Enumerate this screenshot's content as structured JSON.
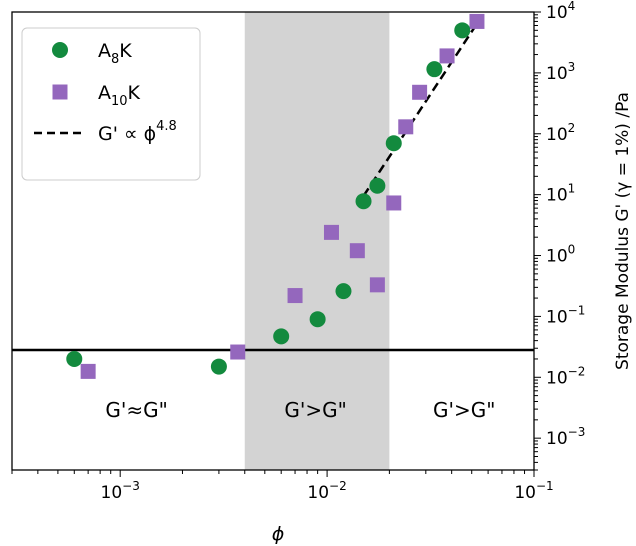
{
  "chart_data": {
    "type": "scatter",
    "xscale": "log",
    "yscale": "log",
    "xlim": [
      0.0003,
      0.1
    ],
    "ylim": [
      0.0003,
      10000
    ],
    "xlabel": "ϕ",
    "ylabel": "Storage Modulus G' (γ = 1%) /Pa",
    "grid": false,
    "legend_position": "top-left",
    "x_ticks": [
      {
        "value": 0.001,
        "base": "10",
        "exp": "−3"
      },
      {
        "value": 0.01,
        "base": "10",
        "exp": "−2"
      },
      {
        "value": 0.1,
        "base": "10",
        "exp": "−1"
      }
    ],
    "y_ticks": [
      {
        "value": 0.001,
        "base": "10",
        "exp": "−3"
      },
      {
        "value": 0.01,
        "base": "10",
        "exp": "−2"
      },
      {
        "value": 0.1,
        "base": "10",
        "exp": "−1"
      },
      {
        "value": 1,
        "base": "10",
        "exp": "0"
      },
      {
        "value": 10,
        "base": "10",
        "exp": "1"
      },
      {
        "value": 100,
        "base": "10",
        "exp": "2"
      },
      {
        "value": 1000,
        "base": "10",
        "exp": "3"
      },
      {
        "value": 10000,
        "base": "10",
        "exp": "4"
      }
    ],
    "shaded_region": {
      "x": [
        0.004,
        0.02
      ],
      "color": "#d3d3d3"
    },
    "horizontal_line": {
      "y": 0.028,
      "color": "#000000"
    },
    "series": [
      {
        "name": "A8K",
        "marker": "circle",
        "color": "#138a3e",
        "x": [
          0.0006,
          0.003,
          0.006,
          0.009,
          0.012,
          0.015,
          0.0175,
          0.021,
          0.033,
          0.045
        ],
        "y": [
          0.02,
          0.015,
          0.047,
          0.09,
          0.26,
          7.8,
          14,
          70,
          1150,
          5000
        ]
      },
      {
        "name": "A10K",
        "marker": "square",
        "color": "#9467bd",
        "x": [
          0.0007,
          0.0037,
          0.007,
          0.0105,
          0.014,
          0.0175,
          0.021,
          0.024,
          0.028,
          0.038,
          0.053
        ],
        "y": [
          0.0125,
          0.026,
          0.22,
          2.4,
          1.2,
          0.33,
          7.3,
          130,
          480,
          1900,
          7000
        ]
      }
    ],
    "fit_line": {
      "name": "G' ∝ ϕ^4.8",
      "style": "dashed",
      "exponent": 4.8,
      "x": [
        0.015,
        0.055
      ],
      "y": [
        9.5,
        7800
      ]
    },
    "legend": {
      "entries": [
        {
          "series": "A8K",
          "base": "A",
          "sub": "8",
          "tail": "K"
        },
        {
          "series": "A10K",
          "base": "A",
          "sub": "10",
          "tail": "K"
        },
        {
          "series": "fit",
          "base": "G' ∝ ϕ",
          "sup": "4.8"
        }
      ]
    },
    "annotations": [
      {
        "text": "G'≈G\"",
        "x": 0.0012,
        "y": 0.003
      },
      {
        "text": "G'>G\"",
        "x": 0.0088,
        "y": 0.003
      },
      {
        "text": "G'>G\"",
        "x": 0.046,
        "y": 0.003
      }
    ]
  }
}
